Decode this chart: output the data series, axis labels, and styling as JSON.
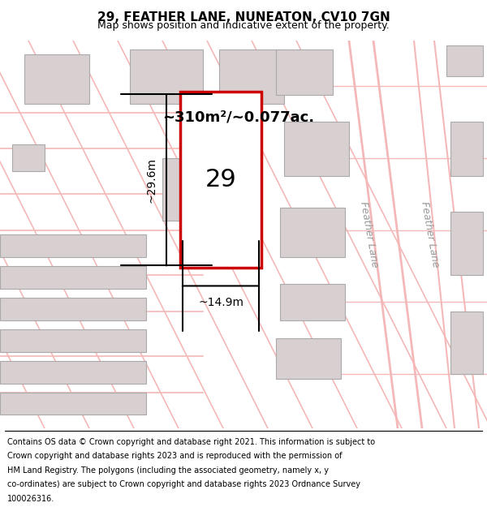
{
  "title": "29, FEATHER LANE, NUNEATON, CV10 7GN",
  "subtitle": "Map shows position and indicative extent of the property.",
  "footer": "Contains OS data © Crown copyright and database right 2021. This information is subject to Crown copyright and database rights 2023 and is reproduced with the permission of HM Land Registry. The polygons (including the associated geometry, namely x, y co-ordinates) are subject to Crown copyright and database rights 2023 Ordnance Survey 100026316.",
  "area_label": "~310m²/~0.077ac.",
  "width_label": "~14.9m",
  "height_label": "~29.6m",
  "plot_number": "29",
  "bg_color": "#ffffff",
  "map_bg": "#f5f0f0",
  "road_color": "#f5b8b8",
  "building_color": "#d8d0d0",
  "plot_outline_color": "#cc0000",
  "street_label1": "Feather Lane",
  "street_label2": "Feather Lane",
  "figure_width": 6.0,
  "figure_height": 6.25
}
